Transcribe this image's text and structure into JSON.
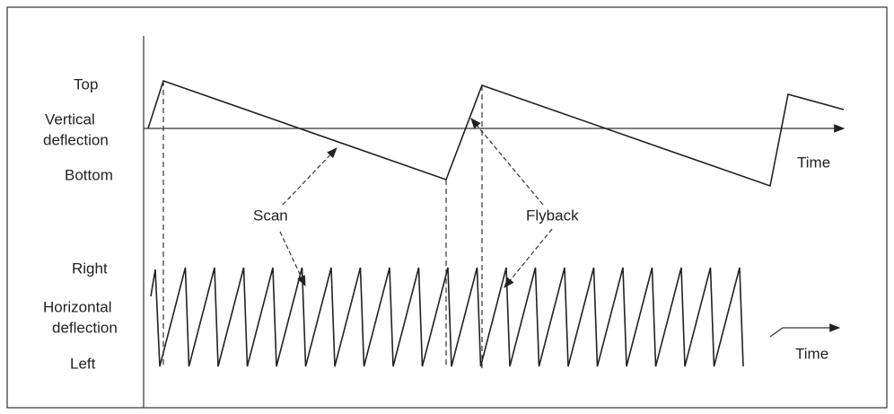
{
  "vertical": {
    "high": "Top",
    "title": [
      "Vertical",
      "deflection"
    ],
    "low": "Bottom",
    "time": "Time"
  },
  "horizontal": {
    "high": "Right",
    "title": [
      "Horizontal",
      "deflection"
    ],
    "low": "Left",
    "time": "Time"
  },
  "annotations": {
    "scan": "Scan",
    "flyback": "Flyback"
  }
}
